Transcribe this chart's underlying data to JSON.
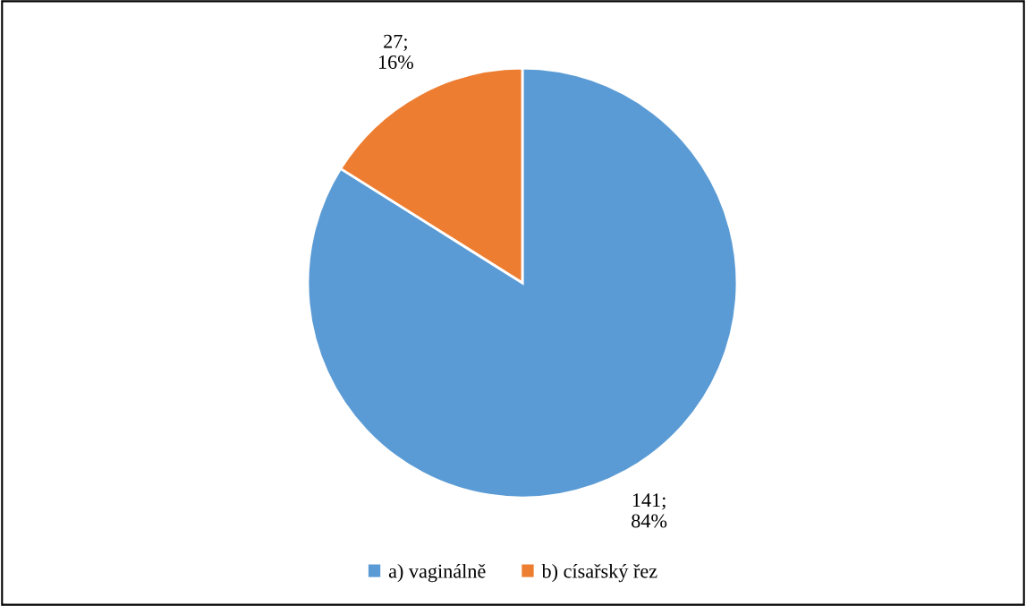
{
  "chart_data": {
    "type": "pie",
    "categories": [
      "a) vaginálně",
      "b) císařský řez"
    ],
    "values": [
      141,
      27
    ],
    "colors": [
      "#5b9bd5",
      "#ed7d31"
    ],
    "value_labels": [
      "141;\n84%",
      "27;\n16%"
    ],
    "legend": "bottom"
  }
}
